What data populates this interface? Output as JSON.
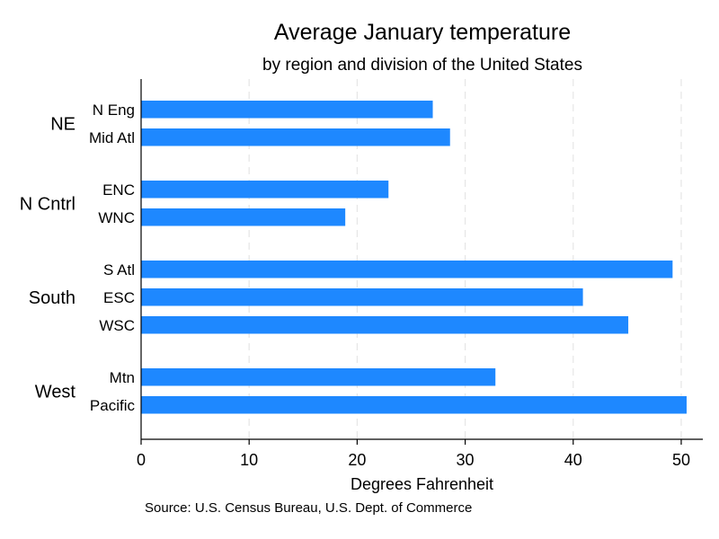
{
  "chart_data": {
    "type": "bar",
    "orientation": "horizontal",
    "title": "Average January temperature",
    "subtitle": "by region and division of the United States",
    "xlabel": "Degrees Fahrenheit",
    "note": "Source: U.S. Census Bureau, U.S. Dept. of Commerce",
    "xlim": [
      0,
      52
    ],
    "xticks": [
      0,
      10,
      20,
      30,
      40,
      50
    ],
    "grid": true,
    "legend": "none",
    "bar_color": "#1e88ff",
    "groups": [
      {
        "name": "NE",
        "categories": [
          "N Eng",
          "Mid Atl"
        ],
        "values": [
          27.0,
          28.6
        ]
      },
      {
        "name": "N Cntrl",
        "categories": [
          "ENC",
          "WNC"
        ],
        "values": [
          22.9,
          18.9
        ]
      },
      {
        "name": "South",
        "categories": [
          "S Atl",
          "ESC",
          "WSC"
        ],
        "values": [
          49.2,
          40.9,
          45.1
        ]
      },
      {
        "name": "West",
        "categories": [
          "Mtn",
          "Pacific"
        ],
        "values": [
          32.8,
          50.5
        ]
      }
    ]
  }
}
